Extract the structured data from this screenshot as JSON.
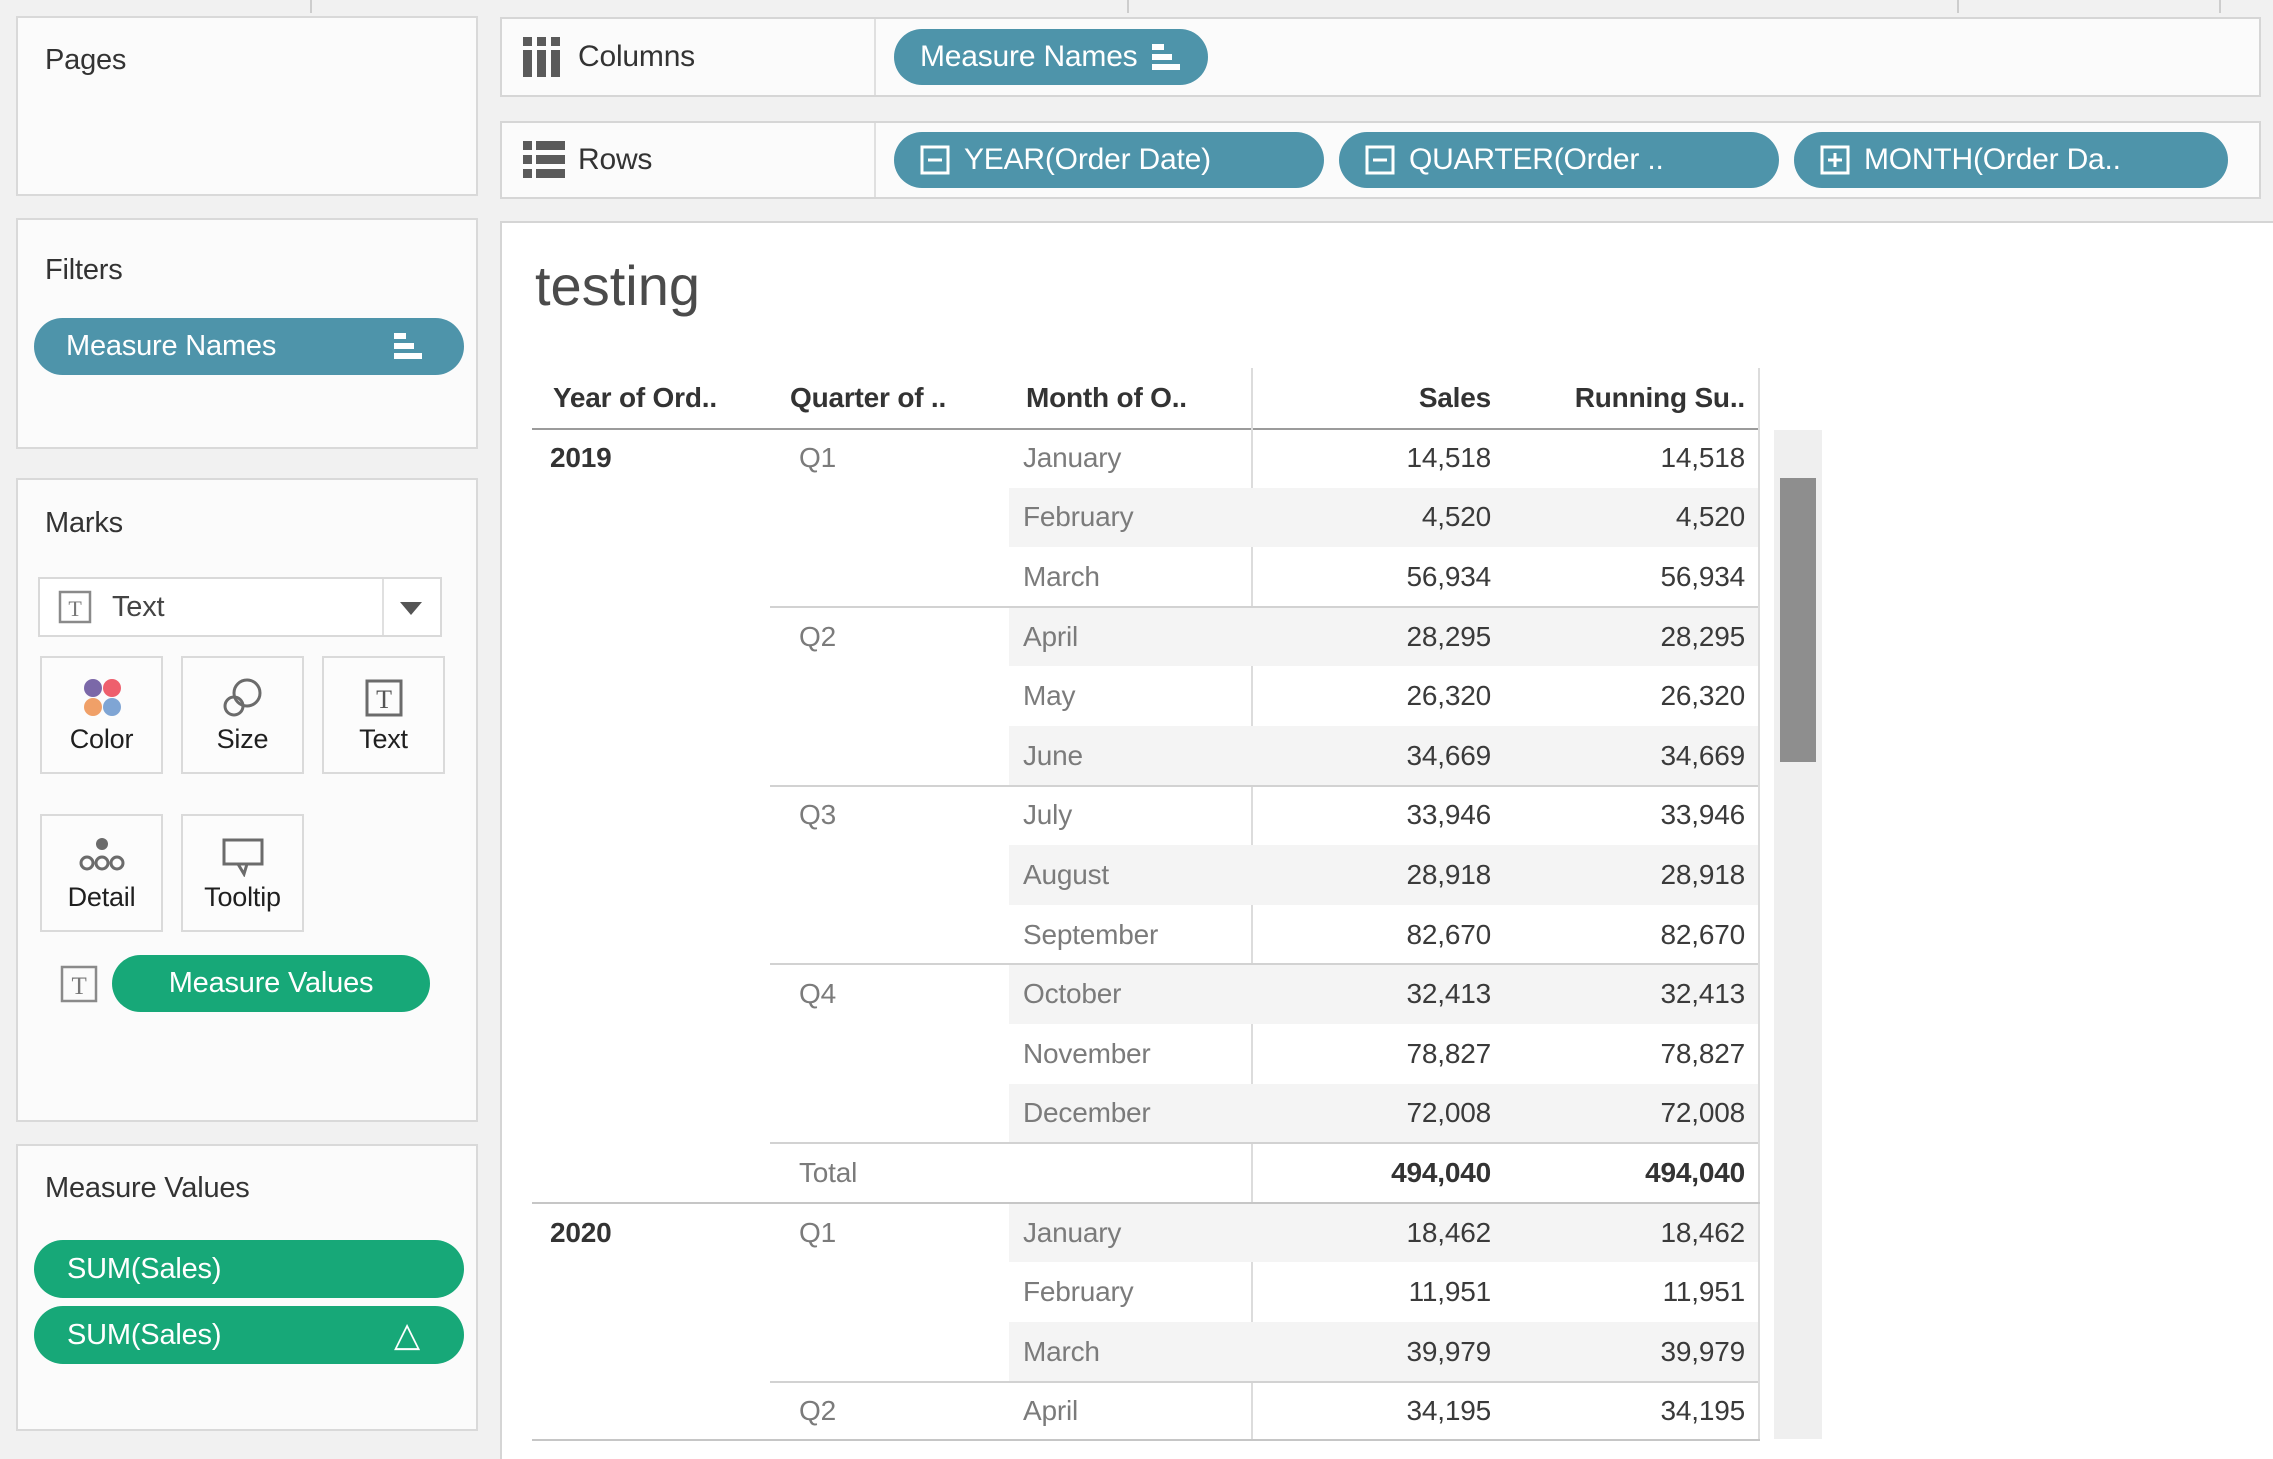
{
  "colors": {
    "pill_teal": "#4e94aa",
    "pill_green": "#17a878",
    "row_band": "#f4f4f4",
    "scroll_thumb": "#8e8e8e"
  },
  "cards": {
    "pages": {
      "title": "Pages"
    },
    "filters": {
      "title": "Filters",
      "pills": [
        {
          "label": "Measure Names",
          "icon": "sort-bars-icon"
        }
      ]
    },
    "marks": {
      "title": "Marks",
      "mark_type": {
        "label": "Text",
        "icon": "text-box-icon"
      },
      "buttons": [
        {
          "label": "Color"
        },
        {
          "label": "Size"
        },
        {
          "label": "Text"
        },
        {
          "label": "Detail"
        },
        {
          "label": "Tooltip"
        }
      ],
      "pill": {
        "label": "Measure Values"
      }
    },
    "measure_values": {
      "title": "Measure Values",
      "pills": [
        {
          "label": "SUM(Sales)",
          "delta": ""
        },
        {
          "label": "SUM(Sales)",
          "delta": "△"
        }
      ]
    }
  },
  "shelves": {
    "columns": {
      "label": "Columns",
      "pills": [
        {
          "label": "Measure Names",
          "icon": "sort-bars-icon"
        }
      ]
    },
    "rows": {
      "label": "Rows",
      "pills": [
        {
          "label": "YEAR(Order Date)",
          "prefix": "minus"
        },
        {
          "label": "QUARTER(Order ..",
          "prefix": "minus"
        },
        {
          "label": "MONTH(Order Da..",
          "prefix": "plus"
        }
      ]
    }
  },
  "sheet": {
    "title": "testing",
    "table": {
      "headers": {
        "year": "Year of Ord..",
        "quarter": "Quarter of ..",
        "month": "Month of O..",
        "sales": "Sales",
        "running": "Running Su.."
      },
      "rows": [
        {
          "year": "2019",
          "quarter": "Q1",
          "month": "January",
          "sales": "14,518",
          "running": "14,518",
          "shaded": false,
          "sep": "none",
          "total": false
        },
        {
          "year": "",
          "quarter": "",
          "month": "February",
          "sales": "4,520",
          "running": "4,520",
          "shaded": true,
          "sep": "none",
          "total": false
        },
        {
          "year": "",
          "quarter": "",
          "month": "March",
          "sales": "56,934",
          "running": "56,934",
          "shaded": false,
          "sep": "none",
          "total": false
        },
        {
          "year": "",
          "quarter": "Q2",
          "month": "April",
          "sales": "28,295",
          "running": "28,295",
          "shaded": true,
          "sep": "quarter",
          "total": false
        },
        {
          "year": "",
          "quarter": "",
          "month": "May",
          "sales": "26,320",
          "running": "26,320",
          "shaded": false,
          "sep": "none",
          "total": false
        },
        {
          "year": "",
          "quarter": "",
          "month": "June",
          "sales": "34,669",
          "running": "34,669",
          "shaded": true,
          "sep": "none",
          "total": false
        },
        {
          "year": "",
          "quarter": "Q3",
          "month": "July",
          "sales": "33,946",
          "running": "33,946",
          "shaded": false,
          "sep": "quarter",
          "total": false
        },
        {
          "year": "",
          "quarter": "",
          "month": "August",
          "sales": "28,918",
          "running": "28,918",
          "shaded": true,
          "sep": "none",
          "total": false
        },
        {
          "year": "",
          "quarter": "",
          "month": "September",
          "sales": "82,670",
          "running": "82,670",
          "shaded": false,
          "sep": "none",
          "total": false
        },
        {
          "year": "",
          "quarter": "Q4",
          "month": "October",
          "sales": "32,413",
          "running": "32,413",
          "shaded": true,
          "sep": "quarter",
          "total": false
        },
        {
          "year": "",
          "quarter": "",
          "month": "November",
          "sales": "78,827",
          "running": "78,827",
          "shaded": false,
          "sep": "none",
          "total": false
        },
        {
          "year": "",
          "quarter": "",
          "month": "December",
          "sales": "72,008",
          "running": "72,008",
          "shaded": true,
          "sep": "none",
          "total": false
        },
        {
          "year": "",
          "quarter": "Total",
          "month": "",
          "sales": "494,040",
          "running": "494,040",
          "shaded": false,
          "sep": "quarter",
          "total": true
        },
        {
          "year": "2020",
          "quarter": "Q1",
          "month": "January",
          "sales": "18,462",
          "running": "18,462",
          "shaded": true,
          "sep": "year",
          "total": false
        },
        {
          "year": "",
          "quarter": "",
          "month": "February",
          "sales": "11,951",
          "running": "11,951",
          "shaded": false,
          "sep": "none",
          "total": false
        },
        {
          "year": "",
          "quarter": "",
          "month": "March",
          "sales": "39,979",
          "running": "39,979",
          "shaded": true,
          "sep": "none",
          "total": false
        },
        {
          "year": "",
          "quarter": "Q2",
          "month": "April",
          "sales": "34,195",
          "running": "34,195",
          "shaded": false,
          "sep": "quarter",
          "total": false
        }
      ]
    }
  }
}
